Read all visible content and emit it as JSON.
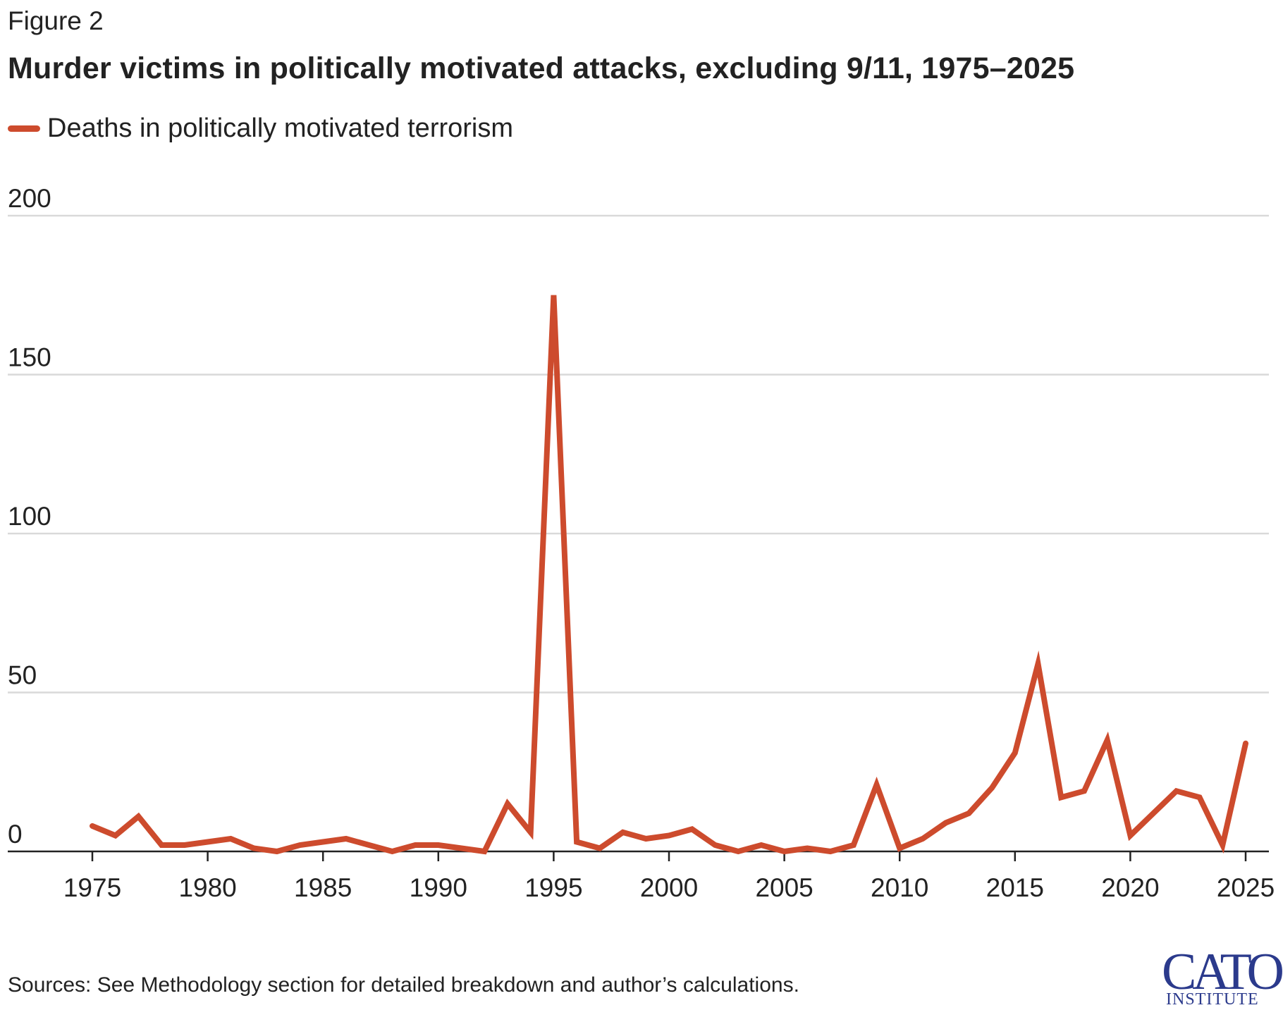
{
  "figure_label": "Figure 2",
  "title": "Murder victims in politically motivated attacks, excluding 9/11, 1975–2025",
  "source_note": "Sources: See Methodology section for detailed breakdown and author’s calculations.",
  "logo": {
    "main": "CATO",
    "sub": "INSTITUTE"
  },
  "colors": {
    "series": "#cd4b2d",
    "grid": "#d9d9d9",
    "axis": "#222222",
    "logo": "#2b3a8c"
  },
  "chart_data": {
    "type": "line",
    "title": "Murder victims in politically motivated attacks, excluding 9/11, 1975–2025",
    "xlabel": "",
    "ylabel": "",
    "xlim": [
      1975,
      2025
    ],
    "ylim": [
      0,
      200
    ],
    "grid": true,
    "legend_position": "top-left",
    "x_ticks": [
      "1975",
      "1980",
      "1985",
      "1990",
      "1995",
      "2000",
      "2005",
      "2010",
      "2015",
      "2020",
      "2025"
    ],
    "y_ticks": [
      "0",
      "50",
      "100",
      "150",
      "200"
    ],
    "series": [
      {
        "name": "Deaths in politically motivated terrorism",
        "x": [
          1975,
          1976,
          1977,
          1978,
          1979,
          1980,
          1981,
          1982,
          1983,
          1984,
          1985,
          1986,
          1987,
          1988,
          1989,
          1990,
          1991,
          1992,
          1993,
          1994,
          1995,
          1996,
          1997,
          1998,
          1999,
          2000,
          2001,
          2002,
          2003,
          2004,
          2005,
          2006,
          2007,
          2008,
          2009,
          2010,
          2011,
          2012,
          2013,
          2014,
          2015,
          2016,
          2017,
          2018,
          2019,
          2020,
          2021,
          2022,
          2023,
          2024,
          2025
        ],
        "y": [
          8,
          5,
          11,
          2,
          2,
          3,
          4,
          1,
          0,
          2,
          3,
          4,
          2,
          0,
          2,
          2,
          1,
          0,
          15,
          6,
          175,
          3,
          1,
          6,
          4,
          5,
          7,
          2,
          0,
          2,
          0,
          1,
          0,
          2,
          21,
          1,
          4,
          9,
          12,
          20,
          31,
          59,
          17,
          19,
          35,
          5,
          12,
          19,
          17,
          2,
          34
        ]
      }
    ]
  }
}
